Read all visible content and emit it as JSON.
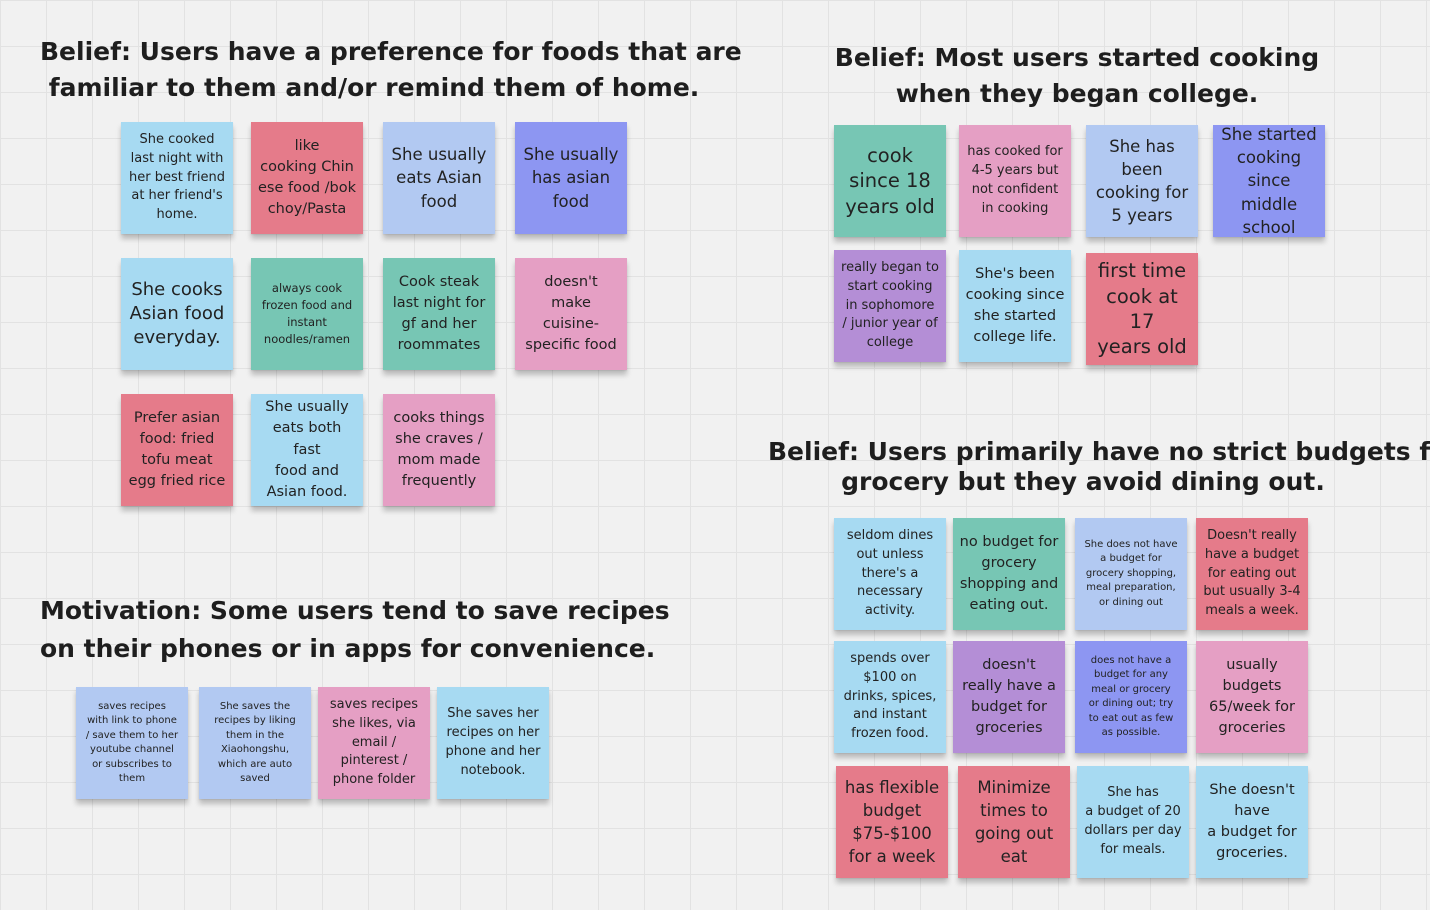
{
  "headings": {
    "h1": {
      "line1": "Belief: Users have a preference for foods that are",
      "line2": "familiar to them and/or remind them of home."
    },
    "h2": {
      "line1": "Belief: Most users started cooking",
      "line2": "when they began college."
    },
    "h3": {
      "line1": "Belief: Users primarily have no strict budgets for",
      "line2": "grocery but they avoid dining out."
    },
    "h4": {
      "line1": "Motivation: Some users tend to save recipes",
      "line2": "on their phones or in apps for convenience."
    }
  },
  "colors": {
    "blue": "#a7daf2",
    "light_blue": "#b2c9f2",
    "purple": "#8d96f2",
    "red": "#e57b8a",
    "pink": "#e59fc4",
    "teal": "#77c6b4",
    "violet": "#b48ed6",
    "board": "#f1f1f1"
  },
  "notes": {
    "familiar": [
      {
        "lines": [
          "She cooked",
          "last night with",
          "her best friend",
          "at her friend's",
          "home."
        ]
      },
      {
        "lines": [
          "like",
          "cooking Chin",
          "ese food /bok",
          "choy/Pasta"
        ]
      },
      {
        "lines": [
          "She usually",
          "eats Asian",
          "food"
        ]
      },
      {
        "lines": [
          "She usually",
          "has asian",
          "food"
        ]
      },
      {
        "lines": [
          "She cooks",
          "Asian food",
          "everyday."
        ]
      },
      {
        "lines": [
          "always cook",
          "frozen food and",
          "instant",
          "noodles/ramen"
        ]
      },
      {
        "lines": [
          "Cook steak",
          "last night for",
          "gf and her",
          "roommates"
        ]
      },
      {
        "lines": [
          "doesn't",
          "make",
          "cuisine-",
          "specific food"
        ]
      },
      {
        "lines": [
          "Prefer asian",
          "food: fried",
          "tofu meat",
          "egg fried rice"
        ]
      },
      {
        "lines": [
          "She usually",
          "eats both fast",
          "food and",
          "Asian food."
        ]
      },
      {
        "lines": [
          "cooks things",
          "she craves /",
          "mom made",
          "frequently"
        ]
      }
    ],
    "college": [
      {
        "lines": [
          "cook",
          "since 18",
          "years old"
        ]
      },
      {
        "lines": [
          "has cooked for",
          "4-5 years but",
          "not confident",
          "in cooking"
        ]
      },
      {
        "lines": [
          "She has",
          "been",
          "cooking for",
          "5 years"
        ]
      },
      {
        "lines": [
          "She started",
          "cooking",
          "since middle",
          "school"
        ]
      },
      {
        "lines": [
          "really began to",
          "start cooking",
          "in sophomore",
          "/ junior year of",
          "college"
        ]
      },
      {
        "lines": [
          "She's been",
          "cooking since",
          "she started",
          "college life."
        ]
      },
      {
        "lines": [
          "first time",
          "cook at 17",
          "years old"
        ]
      }
    ],
    "budget": [
      {
        "lines": [
          "seldom dines",
          "out unless",
          "there's a",
          "necessary",
          "activity."
        ]
      },
      {
        "lines": [
          "no budget for",
          "grocery",
          "shopping and",
          "eating out."
        ]
      },
      {
        "lines": [
          "She does not have",
          "a budget for",
          "grocery shopping,",
          "meal preparation,",
          "or dining out"
        ]
      },
      {
        "lines": [
          "Doesn't really",
          "have a budget",
          "for eating out",
          "but usually 3-4",
          "meals a week."
        ]
      },
      {
        "lines": [
          "spends over",
          "$100 on",
          "drinks, spices,",
          "and instant",
          "frozen food."
        ]
      },
      {
        "lines": [
          "doesn't",
          "really have a",
          "budget for",
          "groceries"
        ]
      },
      {
        "lines": [
          "does not have a",
          "budget for any",
          "meal or grocery",
          "or dining out; try",
          "to eat out as few",
          "as possible."
        ]
      },
      {
        "lines": [
          "usually",
          "budgets",
          "65/week for",
          "groceries"
        ]
      },
      {
        "lines": [
          "has flexible",
          "budget",
          "$75-$100",
          "for a week"
        ]
      },
      {
        "lines": [
          "Minimize",
          "times to",
          "going out",
          "eat"
        ]
      },
      {
        "lines": [
          "She has",
          "a budget of 20",
          "dollars per day",
          "for meals."
        ]
      },
      {
        "lines": [
          "She doesn't",
          "have",
          "a budget for",
          "groceries."
        ]
      }
    ],
    "recipes": [
      {
        "lines": [
          "saves recipes",
          "with link to phone",
          "/ save them to her",
          "youtube channel",
          "or subscribes to",
          "them"
        ]
      },
      {
        "lines": [
          "She saves the",
          "recipes by liking",
          "them in the",
          "Xiaohongshu,",
          "which are auto",
          "saved"
        ]
      },
      {
        "lines": [
          "saves recipes",
          "she likes, via",
          "email /",
          "pinterest /",
          "phone folder"
        ]
      },
      {
        "lines": [
          "She saves  her",
          "recipes on her",
          "phone and her",
          "notebook."
        ]
      }
    ]
  }
}
